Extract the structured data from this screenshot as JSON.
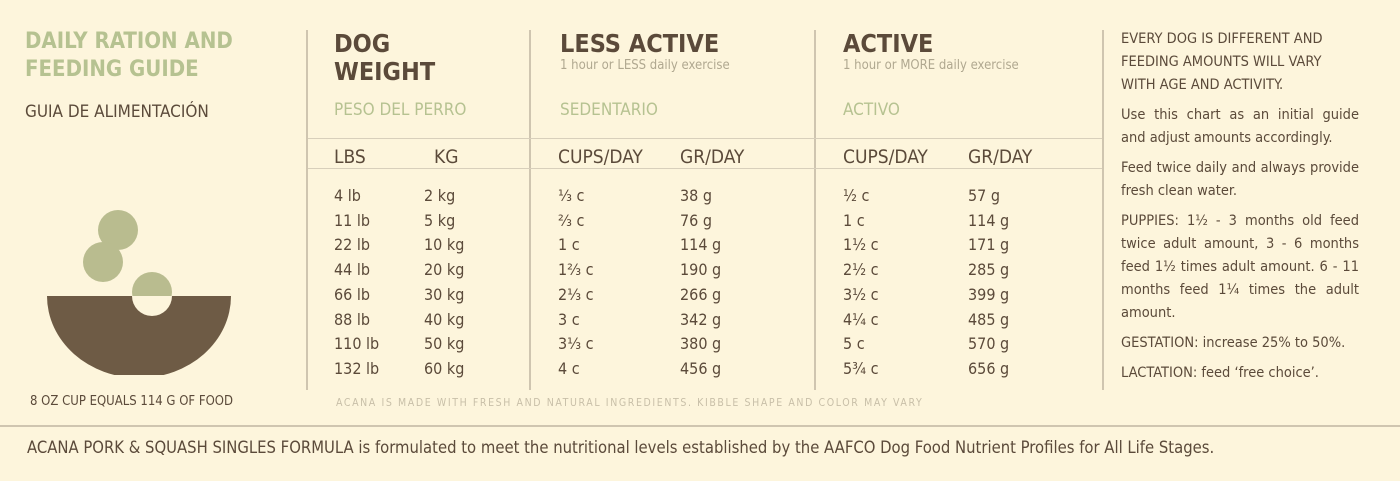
{
  "left": {
    "title_line1": "DAILY RATION AND",
    "title_line2": "FEEDING GUIDE",
    "subtitle": "GUIA DE ALIMENTACIÓN",
    "cup_note": "8 OZ CUP EQUALS 114 G OF FOOD"
  },
  "headers": {
    "weight": {
      "title_line1": "DOG",
      "title_line2": "WEIGHT",
      "spanish": "PESO DEL PERRO",
      "col1": "LBS",
      "col2": "KG"
    },
    "less": {
      "title": "LESS ACTIVE",
      "note": "1 hour or LESS daily exercise",
      "spanish": "SEDENTARIO",
      "col1": "CUPS/DAY",
      "col2": "GR/DAY"
    },
    "active": {
      "title": "ACTIVE",
      "note": "1 hour or MORE daily exercise",
      "spanish": "ACTIVO",
      "col1": "CUPS/DAY",
      "col2": "GR/DAY"
    }
  },
  "rows": [
    [
      "4 lb",
      "2 kg",
      "⅓ c",
      "38 g",
      "½ c",
      "57 g"
    ],
    [
      "11 lb",
      "5 kg",
      "⅔ c",
      "76 g",
      "1 c",
      "114 g"
    ],
    [
      "22 lb",
      "10 kg",
      "1 c",
      "114 g",
      "1½ c",
      "171 g"
    ],
    [
      "44 lb",
      "20 kg",
      "1⅔ c",
      "190 g",
      "2½ c",
      "285 g"
    ],
    [
      "66 lb",
      "30 kg",
      "2⅓ c",
      "266 g",
      "3½ c",
      "399 g"
    ],
    [
      "88 lb",
      "40 kg",
      "3 c",
      "342 g",
      "4¼ c",
      "485 g"
    ],
    [
      "110 lb",
      "50 kg",
      "3⅓ c",
      "380 g",
      "5 c",
      "570 g"
    ],
    [
      "132 lb",
      "60 kg",
      "4 c",
      "456 g",
      "5¾ c",
      "656 g"
    ]
  ],
  "table_note": "ACANA IS MADE WITH FRESH AND NATURAL INGREDIENTS. KIBBLE SHAPE AND COLOR MAY VARY",
  "side": {
    "p1": "EVERY DOG IS DIFFERENT AND FEEDING AMOUNTS WILL VARY WITH AGE AND ACTIVITY.",
    "p2": "Use this chart as an initial guide and adjust amounts accordingly.",
    "p3": "Feed twice daily and always provide fresh clean water.",
    "p4": "PUPPIES: 1½ - 3 months old feed twice adult amount, 3 - 6 months feed 1½ times adult amount. 6 - 11 months feed 1¼ times the adult amount.",
    "p5": "GESTATION: increase 25% to 50%.",
    "p6": "LACTATION: feed ‘free choice’."
  },
  "footer": "ACANA PORK & SQUASH SINGLES FORMULA is formulated to meet the nutritional levels established by the AAFCO Dog Food Nutrient Profiles for All Life Stages."
}
